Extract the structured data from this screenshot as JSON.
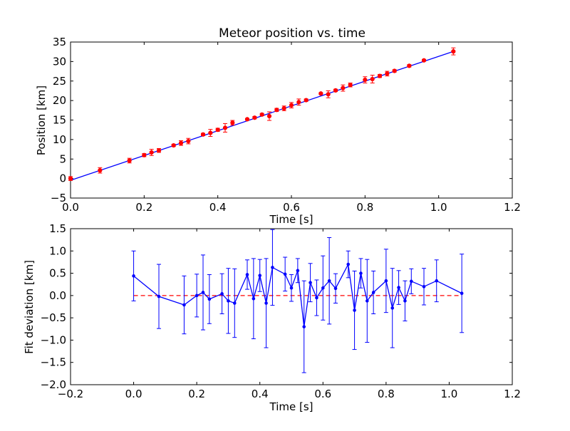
{
  "colors": {
    "fit_line": "#0000ff",
    "data_points": "#ff0000",
    "deviation_series": "#0000ff",
    "zero_reference": "#ff0000",
    "axes": "#000000"
  },
  "chart_data": [
    {
      "type": "scatter",
      "title": "Meteor position vs. time",
      "xlabel": "Time [s]",
      "ylabel": "Position [km]",
      "xlim": [
        0.0,
        1.2
      ],
      "ylim": [
        -5,
        35
      ],
      "xticks": [
        0.0,
        0.2,
        0.4,
        0.6,
        0.8,
        1.0,
        1.2
      ],
      "xtick_labels": [
        "0.0",
        "0.2",
        "0.4",
        "0.6",
        "0.8",
        "1.0",
        "1.2"
      ],
      "yticks": [
        -5,
        0,
        5,
        10,
        15,
        20,
        25,
        30,
        35
      ],
      "ytick_labels": [
        "−5",
        "0",
        "5",
        "10",
        "15",
        "20",
        "25",
        "30",
        "35"
      ],
      "grid": false,
      "fit_line": {
        "x": [
          0.0,
          1.04
        ],
        "y": [
          -0.45,
          32.6
        ]
      },
      "points": {
        "x": [
          0.0,
          0.08,
          0.16,
          0.2,
          0.22,
          0.24,
          0.28,
          0.3,
          0.32,
          0.36,
          0.38,
          0.4,
          0.42,
          0.44,
          0.48,
          0.5,
          0.52,
          0.54,
          0.56,
          0.58,
          0.6,
          0.62,
          0.64,
          0.68,
          0.7,
          0.72,
          0.74,
          0.76,
          0.8,
          0.82,
          0.84,
          0.86,
          0.88,
          0.92,
          0.96,
          1.04
        ],
        "y": [
          0.0,
          2.1,
          4.6,
          6.0,
          6.7,
          7.2,
          8.5,
          9.1,
          9.6,
          11.3,
          11.7,
          12.5,
          13.0,
          14.3,
          15.2,
          15.6,
          16.4,
          16.0,
          17.6,
          18.0,
          18.8,
          19.6,
          20.1,
          21.8,
          21.6,
          22.6,
          23.2,
          24.0,
          25.3,
          25.5,
          26.3,
          26.9,
          27.6,
          28.9,
          30.3,
          32.6
        ],
        "err": [
          0.5,
          0.7,
          0.6,
          0.4,
          0.8,
          0.5,
          0.3,
          0.6,
          0.7,
          0.3,
          0.9,
          0.4,
          1.1,
          0.6,
          0.2,
          0.3,
          0.3,
          1.1,
          0.4,
          0.6,
          0.7,
          0.8,
          0.3,
          0.2,
          0.9,
          0.3,
          0.8,
          0.5,
          0.8,
          1.0,
          0.4,
          0.6,
          0.3,
          0.3,
          0.2,
          0.9
        ]
      }
    },
    {
      "type": "line",
      "title": "",
      "xlabel": "Time [s]",
      "ylabel": "Fit deviation [km]",
      "xlim": [
        -0.2,
        1.2
      ],
      "ylim": [
        -2.0,
        1.5
      ],
      "xticks": [
        -0.2,
        0.0,
        0.2,
        0.4,
        0.6,
        0.8,
        1.0,
        1.2
      ],
      "xtick_labels": [
        "−0.2",
        "0.0",
        "0.2",
        "0.4",
        "0.6",
        "0.8",
        "1.0",
        "1.2"
      ],
      "yticks": [
        -2.0,
        -1.5,
        -1.0,
        -0.5,
        0.0,
        0.5,
        1.0,
        1.5
      ],
      "ytick_labels": [
        "−2.0",
        "−1.5",
        "−1.0",
        "−0.5",
        "0.0",
        "0.5",
        "1.0",
        "1.5"
      ],
      "grid": false,
      "zero_line": 0.0,
      "points": {
        "x": [
          0.0,
          0.08,
          0.16,
          0.2,
          0.22,
          0.24,
          0.28,
          0.3,
          0.32,
          0.36,
          0.38,
          0.4,
          0.42,
          0.44,
          0.48,
          0.5,
          0.52,
          0.54,
          0.56,
          0.58,
          0.6,
          0.62,
          0.64,
          0.68,
          0.7,
          0.72,
          0.74,
          0.76,
          0.8,
          0.82,
          0.84,
          0.86,
          0.88,
          0.92,
          0.96,
          1.04
        ],
        "y": [
          0.44,
          -0.02,
          -0.21,
          0.0,
          0.07,
          -0.08,
          0.04,
          -0.12,
          -0.17,
          0.47,
          -0.07,
          0.45,
          -0.17,
          0.63,
          0.48,
          0.17,
          0.56,
          -0.7,
          0.29,
          -0.05,
          0.17,
          0.33,
          0.16,
          0.7,
          -0.33,
          0.5,
          -0.12,
          0.07,
          0.33,
          -0.28,
          0.18,
          -0.12,
          0.32,
          0.2,
          0.33,
          0.05
        ],
        "err": [
          0.56,
          0.72,
          0.65,
          0.48,
          0.84,
          0.55,
          0.45,
          0.73,
          0.77,
          0.33,
          0.9,
          0.36,
          1.0,
          0.85,
          0.38,
          0.3,
          0.27,
          1.03,
          0.43,
          0.4,
          0.72,
          0.97,
          0.33,
          0.3,
          0.88,
          0.33,
          0.93,
          0.48,
          0.71,
          0.89,
          0.38,
          0.45,
          0.28,
          0.41,
          0.47,
          0.88
        ]
      }
    }
  ]
}
